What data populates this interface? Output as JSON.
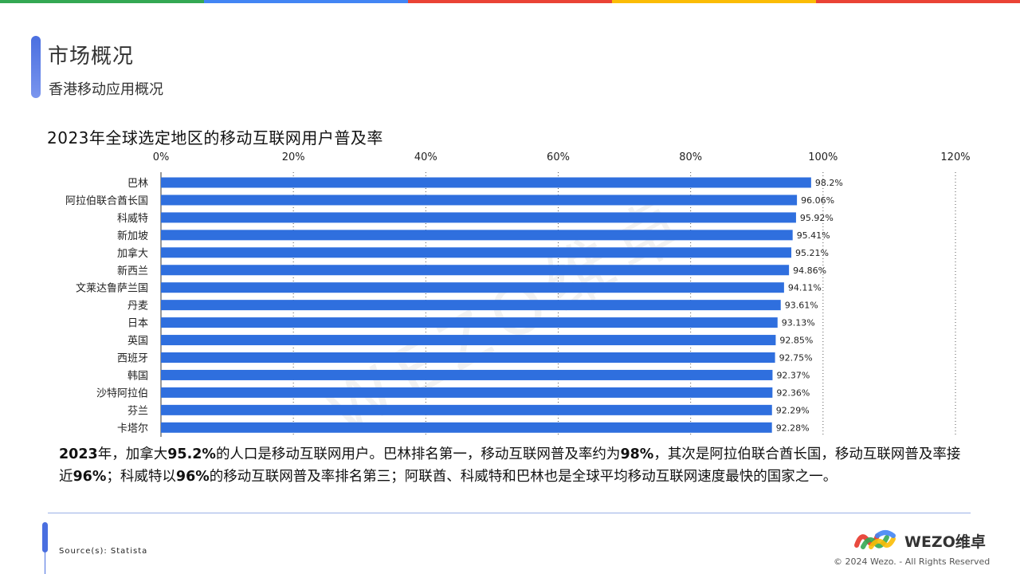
{
  "header": {
    "title": "市场概况",
    "subtitle": "香港移动应用概况",
    "top_bar_colors": [
      "#34a853",
      "#4285f4",
      "#ea4335",
      "#fbbc05",
      "#ea4335"
    ]
  },
  "chart_data": {
    "type": "bar",
    "orientation": "horizontal",
    "title": "2023年全球选定地区的移动互联网用户普及率",
    "categories": [
      "巴林",
      "阿拉伯联合酋长国",
      "科威特",
      "新加坡",
      "加拿大",
      "新西兰",
      "文莱达鲁萨兰国",
      "丹麦",
      "日本",
      "英国",
      "西班牙",
      "韩国",
      "沙特阿拉伯",
      "芬兰",
      "卡塔尔"
    ],
    "values": [
      98.2,
      96.06,
      95.92,
      95.41,
      95.21,
      94.86,
      94.11,
      93.61,
      93.13,
      92.85,
      92.75,
      92.37,
      92.36,
      92.29,
      92.28
    ],
    "value_labels": [
      "98.2%",
      "96.06%",
      "95.92%",
      "95.41%",
      "95.21%",
      "94.86%",
      "94.11%",
      "93.61%",
      "93.13%",
      "92.85%",
      "92.75%",
      "92.37%",
      "92.36%",
      "92.29%",
      "92.28%"
    ],
    "xlim": [
      0,
      120
    ],
    "x_ticks": [
      0,
      20,
      40,
      60,
      80,
      100,
      120
    ],
    "x_tick_labels": [
      "0%",
      "20%",
      "40%",
      "60%",
      "80%",
      "100%",
      "120%"
    ],
    "axis_position": "top",
    "grid": "vertical dotted",
    "bar_color": "#2f6fde"
  },
  "summary": {
    "parts": [
      {
        "t": "2023",
        "b": true
      },
      {
        "t": "年，加拿大",
        "b": false
      },
      {
        "t": "95.2%",
        "b": true
      },
      {
        "t": "的人口是移动互联网用户。巴林排名第一，移动互联网普及率约为",
        "b": false
      },
      {
        "t": "98%",
        "b": true
      },
      {
        "t": "，其次是阿拉伯联合酋长国，移动互联网普及率接近",
        "b": false
      },
      {
        "t": "96%",
        "b": true
      },
      {
        "t": "；科威特以",
        "b": false
      },
      {
        "t": "96%",
        "b": true
      },
      {
        "t": "的移动互联网普及率排名第三；阿联酋、科威特和巴林也是全球平均移动互联网速度最快的国家之一。",
        "b": false
      }
    ]
  },
  "footer": {
    "source": "Source(s): Statista",
    "logo_text": "WEZO维卓",
    "copyright": "© 2024 Wezo. - All Rights Reserved"
  },
  "watermark": "WEZO维卓"
}
